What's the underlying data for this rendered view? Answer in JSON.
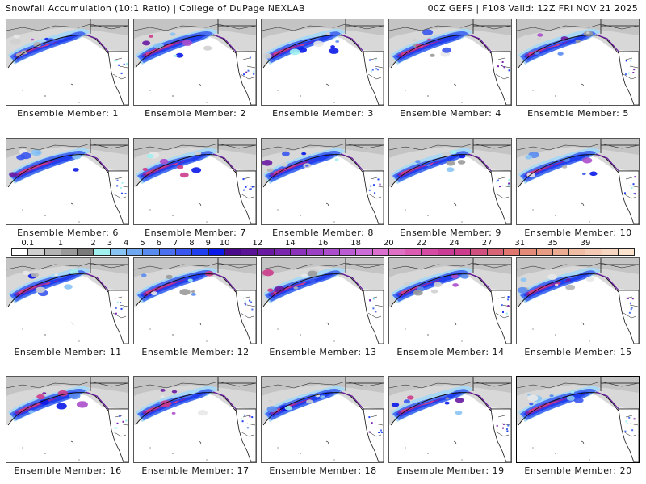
{
  "header": {
    "left": "Snowfall Accumulation (10:1 Ratio) | College of DuPage NEXLAB",
    "right": "00Z GEFS | F108 Valid: 12Z FRI NOV 21 2025"
  },
  "members": [
    {
      "label": "Ensemble Member: 1"
    },
    {
      "label": "Ensemble Member: 2"
    },
    {
      "label": "Ensemble Member: 3"
    },
    {
      "label": "Ensemble Member: 4"
    },
    {
      "label": "Ensemble Member: 5"
    },
    {
      "label": "Ensemble Member: 6"
    },
    {
      "label": "Ensemble Member: 7"
    },
    {
      "label": "Ensemble Member: 8"
    },
    {
      "label": "Ensemble Member: 9"
    },
    {
      "label": "Ensemble Member: 10"
    },
    {
      "label": "Ensemble Member: 11"
    },
    {
      "label": "Ensemble Member: 12"
    },
    {
      "label": "Ensemble Member: 13"
    },
    {
      "label": "Ensemble Member: 14"
    },
    {
      "label": "Ensemble Member: 15"
    },
    {
      "label": "Ensemble Member: 16"
    },
    {
      "label": "Ensemble Member: 17"
    },
    {
      "label": "Ensemble Member: 18"
    },
    {
      "label": "Ensemble Member: 19"
    },
    {
      "label": "Ensemble Member: 20"
    }
  ],
  "colorbar": {
    "tick_labels": [
      "0.1",
      "1",
      "2",
      "3",
      "4",
      "5",
      "6",
      "7",
      "8",
      "9",
      "10",
      "12",
      "14",
      "16",
      "18",
      "20",
      "22",
      "24",
      "27",
      "31",
      "35",
      "39"
    ],
    "colors": [
      "#ffffff",
      "#d0d0d0",
      "#b4b4b4",
      "#9a9a9a",
      "#7a7a7a",
      "#a0f0f0",
      "#88c4f4",
      "#6fa8f0",
      "#5a8cf0",
      "#4a70f0",
      "#3a56f0",
      "#2040f0",
      "#0a18e8",
      "#4a0a8a",
      "#5a1296",
      "#6a1aa2",
      "#7a26ae",
      "#8c32ba",
      "#9c40c4",
      "#ac4ecc",
      "#bc5cd4",
      "#cc6cd8",
      "#dc70d0",
      "#e070c4",
      "#dc5cb4",
      "#d44aa4",
      "#c83c96",
      "#cc3c8c",
      "#d05080",
      "#d86478",
      "#e07870",
      "#e48a78",
      "#e89c84",
      "#ecac94",
      "#f0bca4",
      "#f4cab4",
      "#f6d6c0",
      "#fae2cc"
    ]
  }
}
